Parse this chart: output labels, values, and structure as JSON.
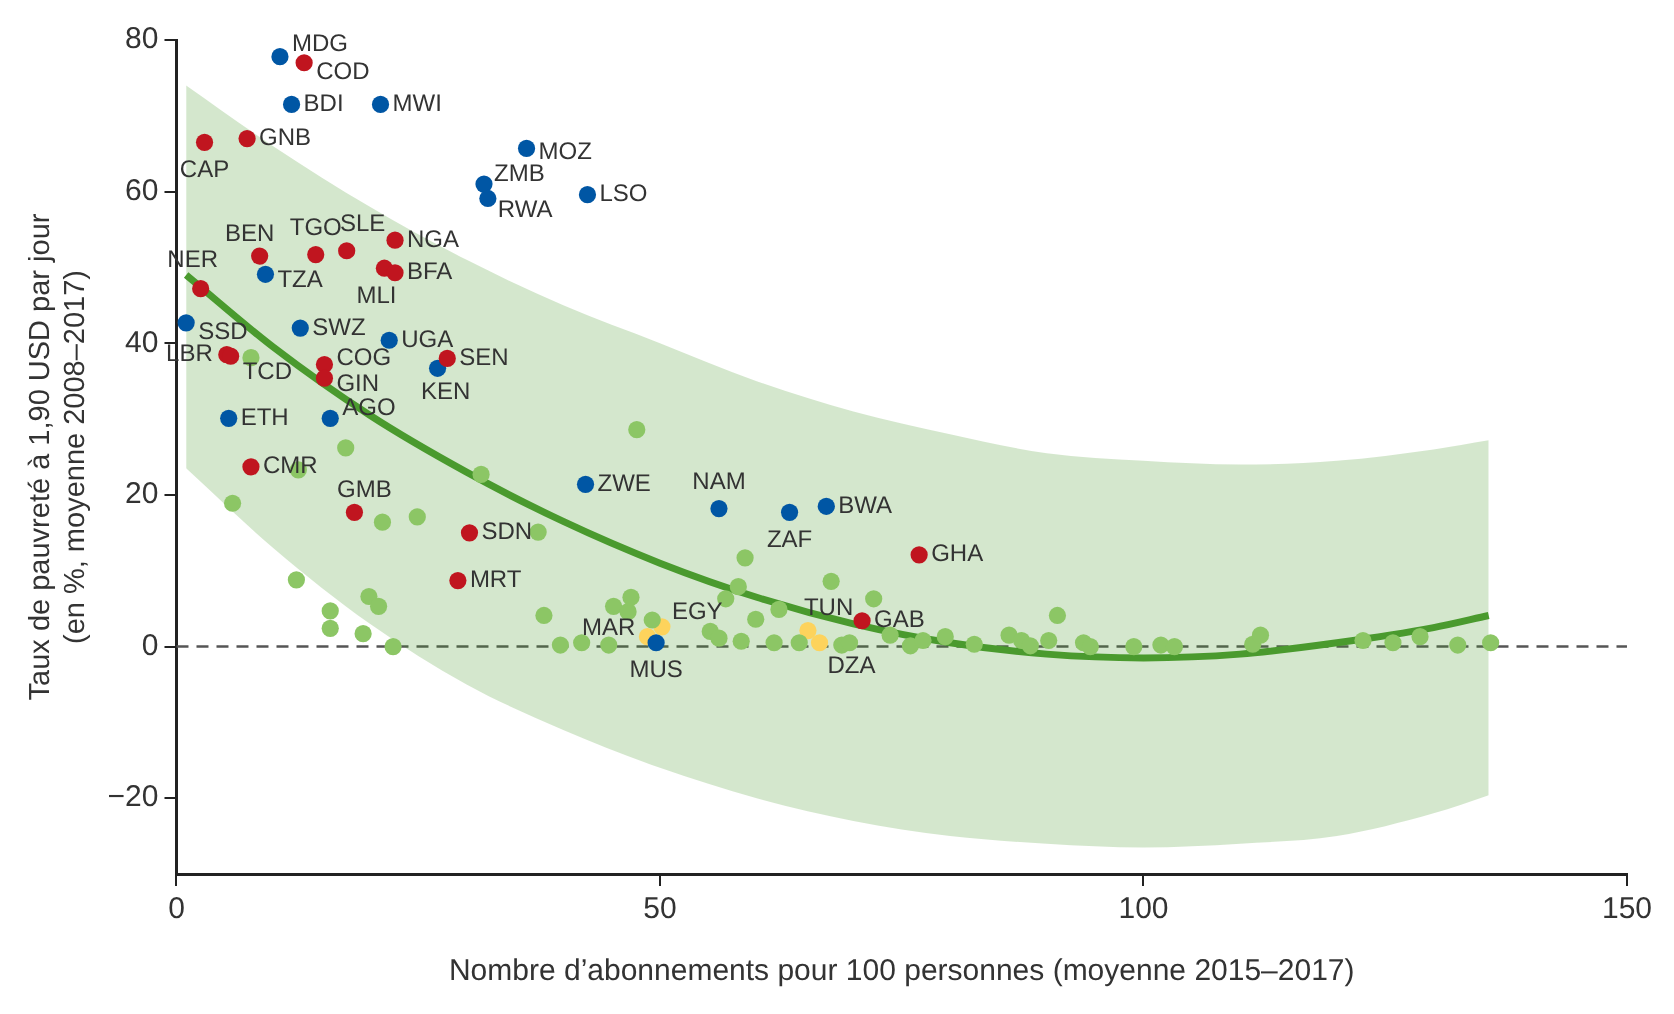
{
  "chart_data": {
    "type": "scatter",
    "xlabel": "Nombre d’abonnements pour 100 personnes (moyenne 2015–2017)",
    "ylabel": "Taux de pauvreté à 1,90 USD par jour\n(en %, moyenne 2008–2017)",
    "xlim": [
      0,
      150
    ],
    "xticks": [
      0,
      50,
      100,
      150
    ],
    "ylim": [
      -30,
      80
    ],
    "yticks": [
      {
        "value": -20,
        "label": "−20"
      },
      0,
      20,
      40,
      60,
      80
    ],
    "marker": "circle",
    "legend": false,
    "series": [
      {
        "type": "line",
        "color": "#4a9a2e",
        "marker": "none",
        "x": [
          1,
          10,
          20,
          30,
          40,
          50,
          60,
          70,
          80,
          90,
          100,
          110,
          120,
          130,
          135.7
        ],
        "values": [
          49,
          39.5,
          30.5,
          23,
          16.5,
          11,
          6.5,
          3,
          0.5,
          -1,
          -1.5,
          -1,
          0.5,
          2.5,
          4.1
        ],
        "upper": [
          74,
          66,
          58,
          51,
          45,
          40,
          35,
          31,
          28,
          25.5,
          24.5,
          24,
          24.5,
          26,
          27.2
        ],
        "lower": [
          23.5,
          13,
          3,
          -5,
          -11,
          -16,
          -20,
          -23,
          -25,
          -26,
          -26.5,
          -26,
          -25,
          -22,
          -19.6
        ]
      },
      {
        "color": "#8cc665",
        "x": [
          7.7,
          47.6,
          17.5,
          12.6,
          31.5,
          5.8,
          21.3,
          24.9,
          37.4,
          58.8,
          12.4,
          67.7,
          58.1,
          19.9,
          20.9,
          15.9,
          15.9,
          19.3,
          22.4,
          38.0,
          45.2,
          46.7,
          47.0,
          39.7,
          41.9,
          44.7,
          49.2,
          56.8,
          55.2,
          56.1,
          58.4,
          59.9,
          61.8,
          62.3,
          64.4,
          68.8,
          69.6,
          72.1,
          73.8,
          75.9,
          77.2,
          79.5,
          82.5,
          86.1,
          87.4,
          88.3,
          90.2,
          91.1,
          93.8,
          94.5,
          99.0,
          101.8,
          103.2,
          111.3,
          112.1,
          122.7,
          125.8,
          128.6,
          132.5,
          135.9
        ],
        "values": [
          38.1,
          28.6,
          26.2,
          23.3,
          22.7,
          18.9,
          16.4,
          17.1,
          15.1,
          11.7,
          8.8,
          8.6,
          7.9,
          6.6,
          5.3,
          4.7,
          2.4,
          1.7,
          0.0,
          4.1,
          5.3,
          4.6,
          6.5,
          0.2,
          0.5,
          0.2,
          3.5,
          6.3,
          2.0,
          1.1,
          0.7,
          3.6,
          0.5,
          4.9,
          0.5,
          0.2,
          0.5,
          6.3,
          1.5,
          0.1,
          0.8,
          1.3,
          0.3,
          1.5,
          0.8,
          0.1,
          0.8,
          4.1,
          0.5,
          0.0,
          0.0,
          0.2,
          0.0,
          0.3,
          1.5,
          0.8,
          0.5,
          1.3,
          0.2,
          0.5
        ]
      },
      {
        "color": "#c0151f",
        "x": [
          13.2,
          2.9,
          7.3,
          8.6,
          14.4,
          17.6,
          22.6,
          21.5,
          22.6,
          2.5,
          5.2,
          5.6,
          15.3,
          15.3,
          28.0,
          7.7,
          18.4,
          30.3,
          29.1,
          76.8,
          70.9
        ],
        "values": [
          77.0,
          66.5,
          67.0,
          51.5,
          51.7,
          52.2,
          53.6,
          49.9,
          49.3,
          47.2,
          38.5,
          38.3,
          37.2,
          35.4,
          38.0,
          23.7,
          17.7,
          15.0,
          8.7,
          12.1,
          3.4
        ]
      },
      {
        "color": "#0056a4",
        "x": [
          10.7,
          11.9,
          21.1,
          36.2,
          31.8,
          32.2,
          42.5,
          9.2,
          1.0,
          12.8,
          22.0,
          27.0,
          5.4,
          15.9,
          42.3,
          56.1,
          63.4,
          67.2,
          49.6
        ],
        "values": [
          77.8,
          71.5,
          71.5,
          65.7,
          61.0,
          59.1,
          59.6,
          49.1,
          42.7,
          42.0,
          40.4,
          36.7,
          30.1,
          30.1,
          21.4,
          18.2,
          17.7,
          18.5,
          0.5
        ]
      },
      {
        "color": "#fdd35c",
        "x": [
          65.3,
          66.5,
          50.2,
          48.7
        ],
        "values": [
          2.1,
          0.5,
          2.6,
          1.3
        ]
      }
    ],
    "ref_lines": [
      {
        "axis": "y",
        "value": 0,
        "color": "#555555",
        "line_style": "dashed"
      }
    ],
    "annotations": [
      {
        "text": "MDG",
        "x": 10.7,
        "y": 77.8
      },
      {
        "text": "COD",
        "x": 13.2,
        "y": 77.0
      },
      {
        "text": "BDI",
        "x": 11.9,
        "y": 71.5
      },
      {
        "text": "MWI",
        "x": 21.1,
        "y": 71.5
      },
      {
        "text": "CAP",
        "x": 2.9,
        "y": 66.5
      },
      {
        "text": "GNB",
        "x": 7.3,
        "y": 67.0
      },
      {
        "text": "MOZ",
        "x": 36.2,
        "y": 65.7
      },
      {
        "text": "ZMB",
        "x": 31.8,
        "y": 61.0
      },
      {
        "text": "RWA",
        "x": 32.2,
        "y": 59.1
      },
      {
        "text": "LSO",
        "x": 42.5,
        "y": 59.6
      },
      {
        "text": "BEN",
        "x": 8.6,
        "y": 51.5
      },
      {
        "text": "TGO",
        "x": 14.4,
        "y": 51.7
      },
      {
        "text": "SLE",
        "x": 17.6,
        "y": 52.2
      },
      {
        "text": "NGA",
        "x": 22.6,
        "y": 53.6
      },
      {
        "text": "TZA",
        "x": 9.2,
        "y": 49.1
      },
      {
        "text": "MLI",
        "x": 21.5,
        "y": 49.9
      },
      {
        "text": "BFA",
        "x": 22.6,
        "y": 49.3
      },
      {
        "text": "NER",
        "x": 2.5,
        "y": 47.2
      },
      {
        "text": "SSD",
        "x": 1.0,
        "y": 42.7
      },
      {
        "text": "SWZ",
        "x": 12.8,
        "y": 42.0
      },
      {
        "text": "UGA",
        "x": 22.0,
        "y": 40.4
      },
      {
        "text": "LBR",
        "x": 5.2,
        "y": 38.5
      },
      {
        "text": "TCD",
        "x": 5.6,
        "y": 38.3
      },
      {
        "text": "COG",
        "x": 15.3,
        "y": 37.2
      },
      {
        "text": "GIN",
        "x": 15.3,
        "y": 35.4
      },
      {
        "text": "SEN",
        "x": 28.0,
        "y": 38.0
      },
      {
        "text": "KEN",
        "x": 27.0,
        "y": 36.7
      },
      {
        "text": "ETH",
        "x": 5.4,
        "y": 30.1
      },
      {
        "text": "AGO",
        "x": 15.9,
        "y": 30.1
      },
      {
        "text": "CMR",
        "x": 7.7,
        "y": 23.7
      },
      {
        "text": "GMB",
        "x": 18.4,
        "y": 17.7
      },
      {
        "text": "SDN",
        "x": 30.3,
        "y": 15.0
      },
      {
        "text": "MRT",
        "x": 29.1,
        "y": 8.7
      },
      {
        "text": "ZWE",
        "x": 42.3,
        "y": 21.4
      },
      {
        "text": "NAM",
        "x": 56.1,
        "y": 18.2
      },
      {
        "text": "ZAF",
        "x": 63.4,
        "y": 17.7
      },
      {
        "text": "BWA",
        "x": 67.2,
        "y": 18.5
      },
      {
        "text": "GHA",
        "x": 76.8,
        "y": 12.1
      },
      {
        "text": "GAB",
        "x": 70.9,
        "y": 3.4
      },
      {
        "text": "TUN",
        "x": 65.3,
        "y": 2.1
      },
      {
        "text": "DZA",
        "x": 66.5,
        "y": 0.5
      },
      {
        "text": "EGY",
        "x": 50.2,
        "y": 2.6
      },
      {
        "text": "MAR",
        "x": 48.7,
        "y": 1.3
      },
      {
        "text": "MUS",
        "x": 49.6,
        "y": 0.5
      }
    ]
  }
}
